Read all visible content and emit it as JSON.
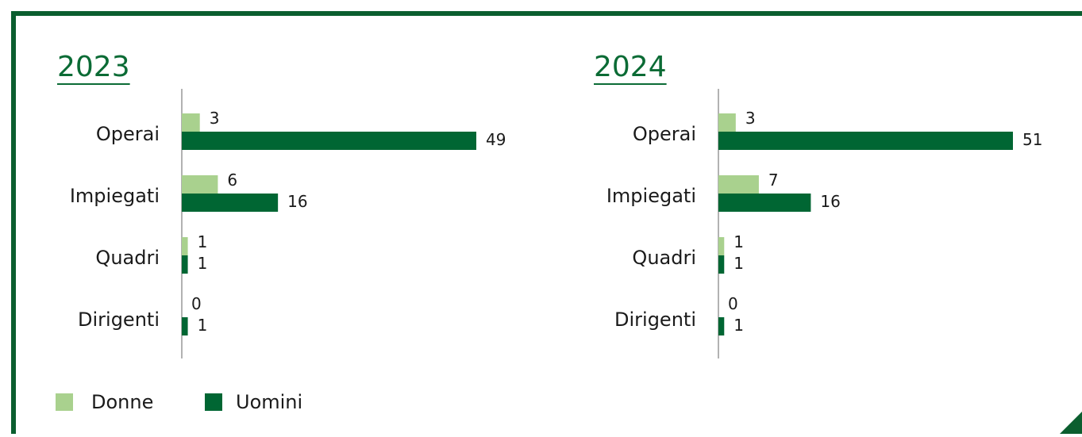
{
  "chart_data": [
    {
      "type": "barh",
      "title": "2023",
      "categories": [
        "Operai",
        "Impiegati",
        "Quadri",
        "Dirigenti"
      ],
      "series": [
        {
          "name": "Donne",
          "color": "#a9d18e",
          "values": [
            3,
            6,
            1,
            0
          ]
        },
        {
          "name": "Uomini",
          "color": "#006633",
          "values": [
            49,
            16,
            1,
            1
          ]
        }
      ]
    },
    {
      "type": "barh",
      "title": "2024",
      "categories": [
        "Operai",
        "Impiegati",
        "Quadri",
        "Dirigenti"
      ],
      "series": [
        {
          "color": "#a9d18e",
          "values": [
            3,
            7,
            1,
            0
          ]
        },
        {
          "color": "#006633",
          "values": [
            51,
            16,
            1,
            1
          ]
        }
      ]
    }
  ]
}
